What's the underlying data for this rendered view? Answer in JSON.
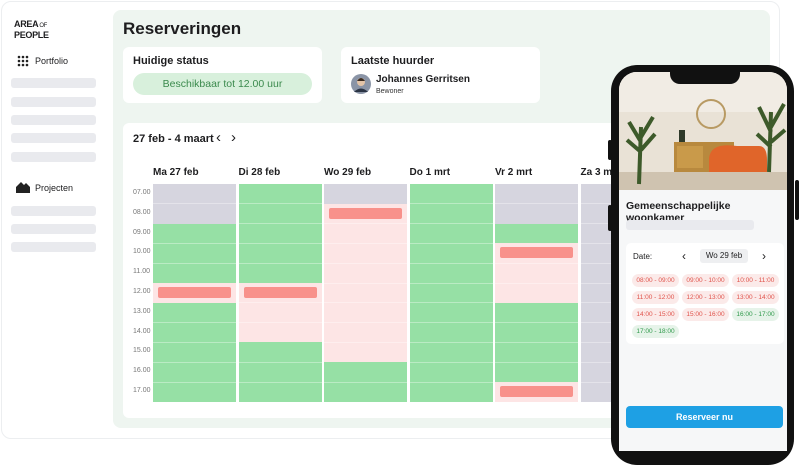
{
  "sidebar": {
    "logo": [
      "AREA",
      "OF",
      "PEOPLE"
    ],
    "nav": [
      "Portfolio",
      "Projecten"
    ]
  },
  "header": {
    "title": "Reserveringen"
  },
  "status_card": {
    "title": "Huidige status",
    "badge": "Beschikbaar tot 12.00 uur"
  },
  "tenant_card": {
    "title": "Laatste huurder",
    "name": "Johannes Gerritsen",
    "role": "Bewoner"
  },
  "calendar": {
    "range": "27 feb - 4 maart",
    "prev": "‹",
    "next": "›",
    "hours": [
      {
        "value": 7,
        "label": "07.00"
      },
      {
        "value": 8,
        "label": "08.00"
      },
      {
        "value": 9,
        "label": "09.00"
      },
      {
        "value": 10,
        "label": "10.00"
      },
      {
        "value": 11,
        "label": "11.00"
      },
      {
        "value": 12,
        "label": "12.00"
      },
      {
        "value": 13,
        "label": "13.00"
      },
      {
        "value": 14,
        "label": "14.00"
      },
      {
        "value": 15,
        "label": "15.00"
      },
      {
        "value": 16,
        "label": "16.00"
      },
      {
        "value": 17,
        "label": "17.00"
      }
    ],
    "days": [
      {
        "label": "Ma 27 feb",
        "blocks": [
          {
            "start": 7,
            "end": 9,
            "color": "#d6d5df"
          },
          {
            "start": 9,
            "end": 12,
            "color": "#96e0a5"
          },
          {
            "start": 12,
            "end": 13,
            "color": "#fde5e5",
            "bar_color": "#f8918b"
          },
          {
            "start": 13,
            "end": 18,
            "color": "#96e0a5"
          }
        ]
      },
      {
        "label": "Di 28 feb",
        "blocks": [
          {
            "start": 7,
            "end": 12,
            "color": "#96e0a5"
          },
          {
            "start": 12,
            "end": 15,
            "color": "#fde5e5",
            "bar_color": "#f8918b"
          },
          {
            "start": 15,
            "end": 18,
            "color": "#96e0a5"
          }
        ]
      },
      {
        "label": "Wo 29 feb",
        "blocks": [
          {
            "start": 7,
            "end": 8,
            "color": "#d6d5df"
          },
          {
            "start": 8,
            "end": 16,
            "color": "#fde5e5",
            "bar_color": "#f8918b"
          },
          {
            "start": 16,
            "end": 18,
            "color": "#96e0a5"
          }
        ]
      },
      {
        "label": "Do 1 mrt",
        "blocks": [
          {
            "start": 7,
            "end": 18,
            "color": "#96e0a5"
          }
        ]
      },
      {
        "label": "Vr 2 mrt",
        "blocks": [
          {
            "start": 7,
            "end": 9,
            "color": "#d6d5df"
          },
          {
            "start": 9,
            "end": 10,
            "color": "#96e0a5"
          },
          {
            "start": 10,
            "end": 13,
            "color": "#fde5e5",
            "bar_color": "#f8918b"
          },
          {
            "start": 13,
            "end": 17,
            "color": "#96e0a5"
          },
          {
            "start": 17,
            "end": 18,
            "color": "#fde5e5",
            "bar_color": "#f8918b"
          }
        ]
      },
      {
        "label": "Za 3 m",
        "blocks": [
          {
            "start": 7,
            "end": 18,
            "color": "#d6d5df"
          }
        ]
      }
    ]
  },
  "phone": {
    "room": "Gemeenschappelijke woonkamer",
    "date_label": "Date:",
    "prev": "‹",
    "date": "Wo 29 feb",
    "next": "›",
    "slots": [
      {
        "label": "08:00 - 09:00",
        "color": "#e0524a"
      },
      {
        "label": "09:00 - 10:00",
        "color": "#e0524a"
      },
      {
        "label": "10:00 - 11:00",
        "color": "#e0524a"
      },
      {
        "label": "11:00 - 12:00",
        "color": "#e0524a"
      },
      {
        "label": "12:00 - 13:00",
        "color": "#e0524a"
      },
      {
        "label": "13:00 - 14:00",
        "color": "#e0524a"
      },
      {
        "label": "14:00 - 15:00",
        "color": "#e0524a"
      },
      {
        "label": "15:00 - 16:00",
        "color": "#e0524a"
      },
      {
        "label": "16:00 - 17:00",
        "color": "#2f9a4a"
      },
      {
        "label": "17:00 - 18:00",
        "color": "#2f9a4a"
      }
    ],
    "button": "Reserveer nu"
  }
}
